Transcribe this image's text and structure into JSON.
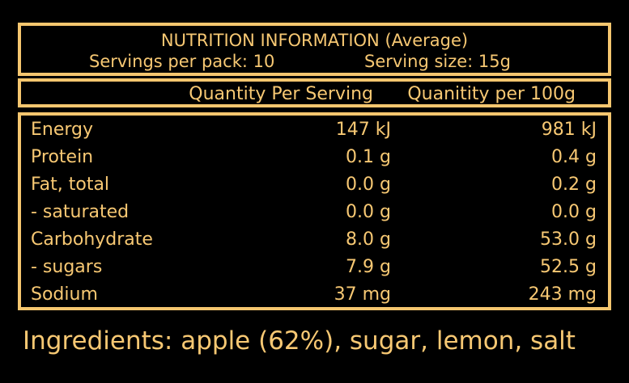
{
  "header": {
    "title": "NUTRITION INFORMATION (Average)",
    "servings_per_pack": "Servings per pack: 10",
    "serving_size": "Serving size: 15g"
  },
  "columns": {
    "per_serving": "Quantity Per Serving",
    "per_100g": "Quanitity per 100g"
  },
  "rows": [
    {
      "name": "Energy",
      "per_serving": "147 kJ",
      "per_100g": "981 kJ"
    },
    {
      "name": "Protein",
      "per_serving": "0.1 g",
      "per_100g": "0.4 g"
    },
    {
      "name": "Fat, total",
      "per_serving": "0.0 g",
      "per_100g": "0.2 g"
    },
    {
      "name": "- saturated",
      "per_serving": "0.0 g",
      "per_100g": "0.0 g"
    },
    {
      "name": "Carbohydrate",
      "per_serving": "8.0 g",
      "per_100g": "53.0 g"
    },
    {
      "name": "- sugars",
      "per_serving": "7.9 g",
      "per_100g": "52.5 g"
    },
    {
      "name": "Sodium",
      "per_serving": "37 mg",
      "per_100g": "243 mg"
    }
  ],
  "ingredients": "Ingredients: apple (62%), sugar, lemon, salt",
  "colors": {
    "background": "#000000",
    "accent": "#f5c66f"
  }
}
